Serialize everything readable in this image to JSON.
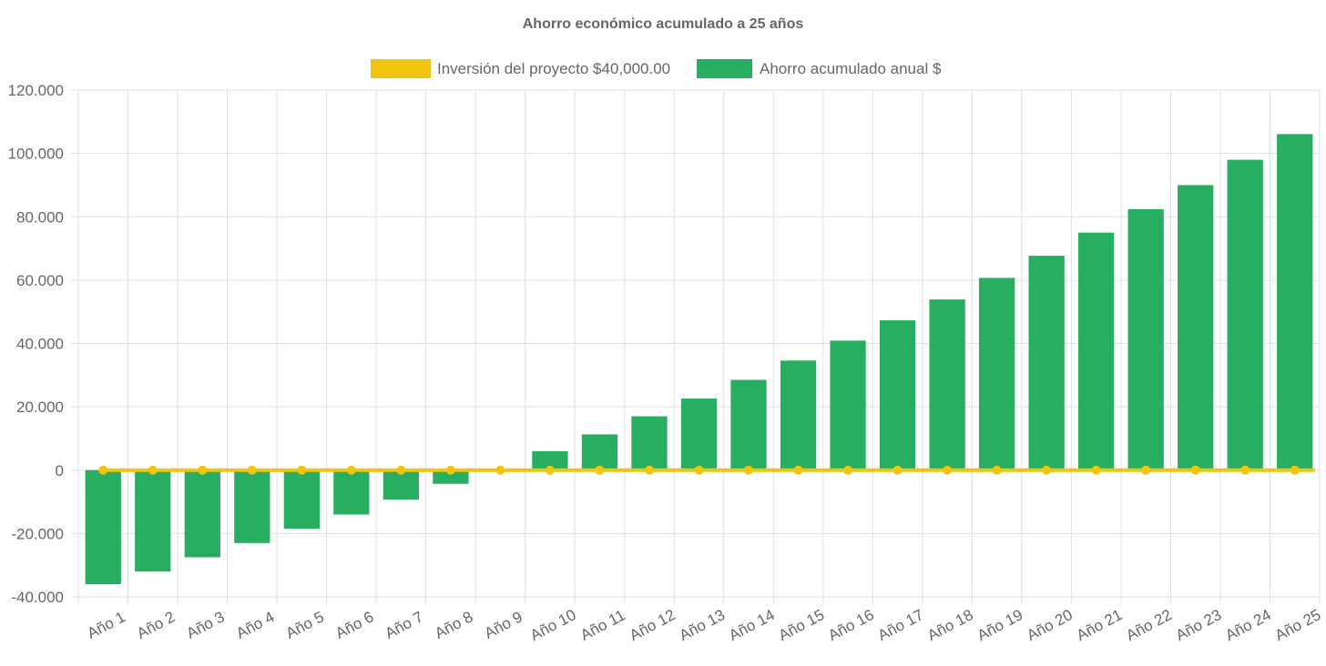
{
  "chart_data": {
    "type": "bar",
    "title": "Ahorro económico acumulado a 25 años",
    "categories": [
      "Año 1",
      "Año 2",
      "Año 3",
      "Año 4",
      "Año 5",
      "Año 6",
      "Año 7",
      "Año 8",
      "Año 9",
      "Año 10",
      "Año 11",
      "Año 12",
      "Año 13",
      "Año 14",
      "Año 15",
      "Año 16",
      "Año 17",
      "Año 18",
      "Año 19",
      "Año 20",
      "Año 21",
      "Año 22",
      "Año 23",
      "Año 24",
      "Año 25"
    ],
    "series": [
      {
        "name": "Inversión del proyecto $40,000.00",
        "type": "line",
        "color": "#f1c40f",
        "values": [
          0,
          0,
          0,
          0,
          0,
          0,
          0,
          0,
          0,
          0,
          0,
          0,
          0,
          0,
          0,
          0,
          0,
          0,
          0,
          0,
          0,
          0,
          0,
          0,
          0
        ]
      },
      {
        "name": "Ahorro acumulado anual $",
        "type": "bar",
        "color": "#27ae60",
        "values": [
          -36000,
          -32000,
          -27500,
          -23000,
          -18500,
          -14000,
          -9300,
          -4300,
          300,
          6000,
          11300,
          17000,
          22600,
          28500,
          34600,
          40900,
          47300,
          53900,
          60700,
          67700,
          75000,
          82400,
          90000,
          98000,
          106100
        ]
      }
    ],
    "ylim": [
      -40000,
      120000
    ],
    "yticks": [
      "120.000",
      "100.000",
      "80.000",
      "60.000",
      "40.000",
      "20.000",
      "0",
      "-20.000",
      "-40.000"
    ],
    "ytick_values": [
      120000,
      100000,
      80000,
      60000,
      40000,
      20000,
      0,
      -20000,
      -40000
    ],
    "grid": true,
    "legend_position": "top"
  }
}
